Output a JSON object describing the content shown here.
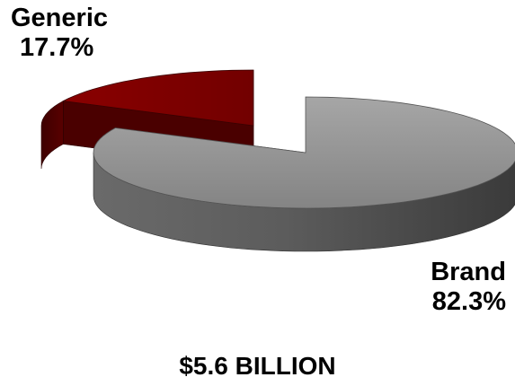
{
  "chart_data": {
    "type": "pie",
    "style": "3d-exploded",
    "slices": [
      {
        "label": "Generic",
        "value": 17.7,
        "value_label": "17.7%",
        "color": "#7a0000"
      },
      {
        "label": "Brand",
        "value": 82.3,
        "value_label": "82.3%",
        "color": "#8a8a8a"
      }
    ],
    "total_label": "$5.6 BILLION"
  }
}
